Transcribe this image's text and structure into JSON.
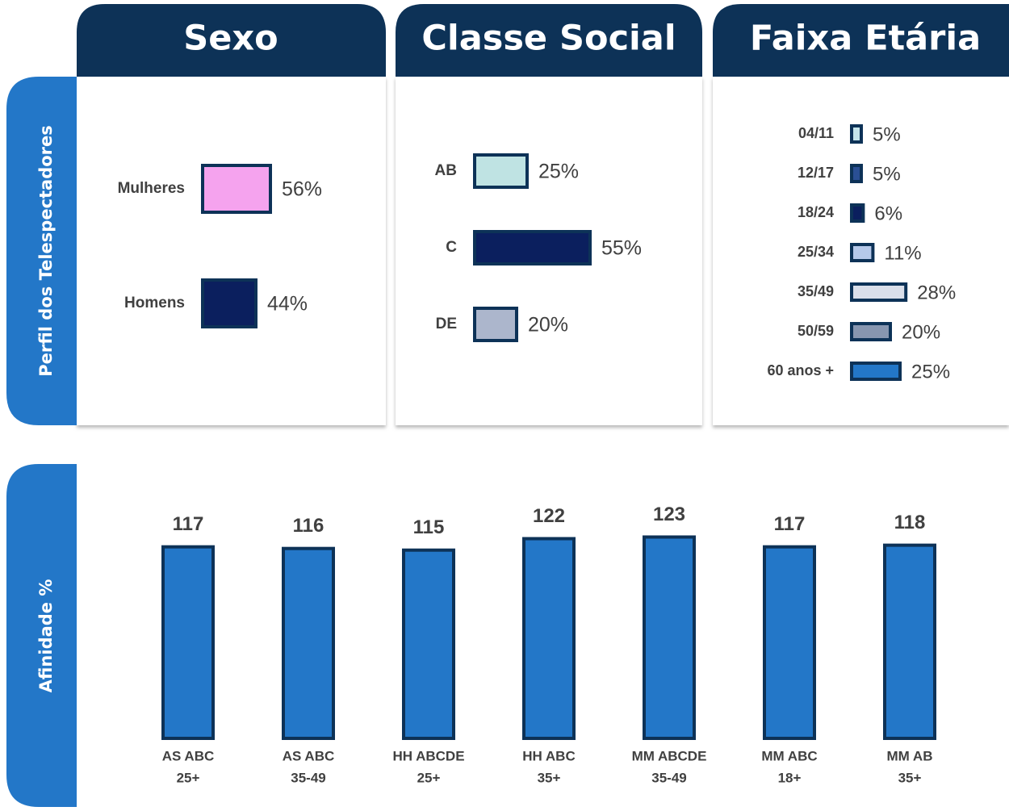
{
  "row_label": "Perfil dos Telespectadores",
  "chart_data": [
    {
      "type": "barh",
      "title": "Sexo",
      "categories": [
        "Mulheres",
        "Homens"
      ],
      "values": [
        56,
        44
      ],
      "value_labels": [
        "56%",
        "44%"
      ],
      "colors": [
        "#f5a3ee",
        "#0b1f5e"
      ],
      "xlim": [
        0,
        100
      ]
    },
    {
      "type": "barh",
      "title": "Classe Social",
      "categories": [
        "AB",
        "C",
        "DE"
      ],
      "values": [
        25,
        55,
        20
      ],
      "value_labels": [
        "25%",
        "55%",
        "20%"
      ],
      "colors": [
        "#bfe3e3",
        "#0b1f5e",
        "#acb6cc"
      ],
      "xlim": [
        0,
        100
      ]
    },
    {
      "type": "barh",
      "title": "Faixa Etária",
      "categories": [
        "04/11",
        "12/17",
        "18/24",
        "25/34",
        "35/49",
        "50/59",
        "60 anos +"
      ],
      "values": [
        5,
        5,
        6,
        11,
        28,
        20,
        25
      ],
      "value_labels": [
        "5%",
        "5%",
        "6%",
        "11%",
        "28%",
        "20%",
        "25%"
      ],
      "colors": [
        "#c4e4ea",
        "#2a4f94",
        "#0b1f5e",
        "#b6c9ea",
        "#dadfea",
        "#8796b0",
        "#2377c8"
      ],
      "xlim": [
        0,
        100
      ]
    },
    {
      "type": "bar",
      "y_label": "Afinidade %",
      "categories": [
        [
          "AS ABC",
          "25+"
        ],
        [
          "AS ABC",
          "35-49"
        ],
        [
          "HH ABCDE",
          "25+"
        ],
        [
          "HH ABC",
          "35+"
        ],
        [
          "MM ABCDE",
          "35-49"
        ],
        [
          "MM ABC",
          "18+"
        ],
        [
          "MM AB",
          "35+"
        ]
      ],
      "values": [
        117,
        116,
        115,
        122,
        123,
        117,
        118
      ],
      "color": "#2377c8",
      "ylim": [
        0,
        140
      ]
    }
  ]
}
